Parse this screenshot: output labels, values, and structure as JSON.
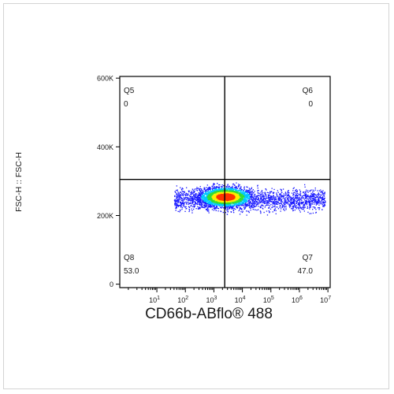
{
  "chart_data": {
    "type": "scatter",
    "title": "",
    "xlabel": "CD66b-ABflo® 488",
    "ylabel": "FSC-H :: FSC-H",
    "x_scale": "log",
    "xlim": [
      0.5,
      12000000
    ],
    "ylim": [
      -10000,
      605000
    ],
    "x_ticks": [
      {
        "value": 10,
        "base": "10",
        "exp": "1"
      },
      {
        "value": 100,
        "base": "10",
        "exp": "2"
      },
      {
        "value": 1000,
        "base": "10",
        "exp": "3"
      },
      {
        "value": 10000,
        "base": "10",
        "exp": "4"
      },
      {
        "value": 100000,
        "base": "10",
        "exp": "5"
      },
      {
        "value": 1000000,
        "base": "10",
        "exp": "6"
      },
      {
        "value": 10000000,
        "base": "10",
        "exp": "7"
      }
    ],
    "y_ticks": [
      {
        "value": 0,
        "label": "0"
      },
      {
        "value": 200000,
        "label": "200K"
      },
      {
        "value": 400000,
        "label": "400K"
      },
      {
        "value": 600000,
        "label": "600K"
      }
    ],
    "gates": {
      "x": 2400,
      "y": 305000
    },
    "quadrants": [
      {
        "name": "Q5",
        "value": "0",
        "position": "top-left"
      },
      {
        "name": "Q6",
        "value": "0",
        "position": "top-right"
      },
      {
        "name": "Q8",
        "value": "53.0",
        "position": "bottom-left"
      },
      {
        "name": "Q7",
        "value": "47.0",
        "position": "bottom-right"
      }
    ],
    "population": {
      "center_x": 2500,
      "center_y": 255000,
      "log_x_range": [
        1.6,
        6.9
      ],
      "y_range": [
        200000,
        305000
      ],
      "description_colors": [
        "#1a1aff",
        "#00c8ff",
        "#33dd33",
        "#ffee00",
        "#ff3300"
      ]
    },
    "grid": false,
    "legend": "none"
  }
}
